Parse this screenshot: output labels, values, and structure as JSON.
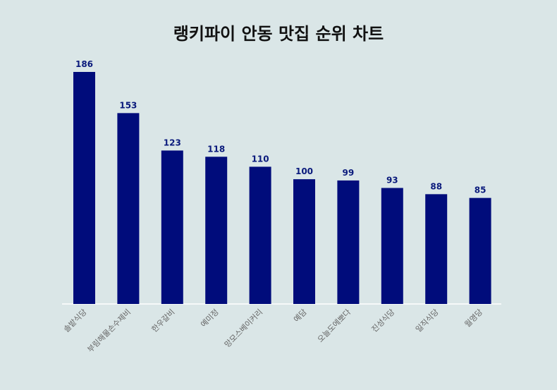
{
  "chart_data": {
    "type": "bar",
    "title": "랭키파이 안동 맛집 순위 차트",
    "categories": [
      "솔밭식당",
      "부림해물손수제비",
      "한우갈비",
      "예미정",
      "망모스베이커리",
      "예담",
      "오늘도에뽀다",
      "진성식당",
      "일직식당",
      "월영당"
    ],
    "values": [
      186,
      153,
      123,
      118,
      110,
      100,
      99,
      93,
      88,
      85
    ],
    "xlabel": "",
    "ylabel": "",
    "ylim": [
      0,
      186
    ],
    "grid": false,
    "legend": "none",
    "bar_color": "#000c7b",
    "value_label_color": "#0a1a7c",
    "background": "#dae6e7"
  }
}
